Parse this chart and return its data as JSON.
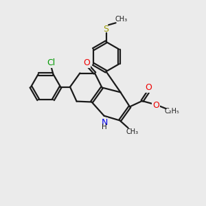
{
  "background_color": "#ebebeb",
  "bond_color": "#1a1a1a",
  "n_color": "#0000ee",
  "o_color": "#ee0000",
  "s_color": "#999900",
  "cl_color": "#009900",
  "figsize": [
    3.0,
    3.0
  ],
  "dpi": 100,
  "xlim": [
    0,
    10
  ],
  "ylim": [
    0,
    10
  ]
}
